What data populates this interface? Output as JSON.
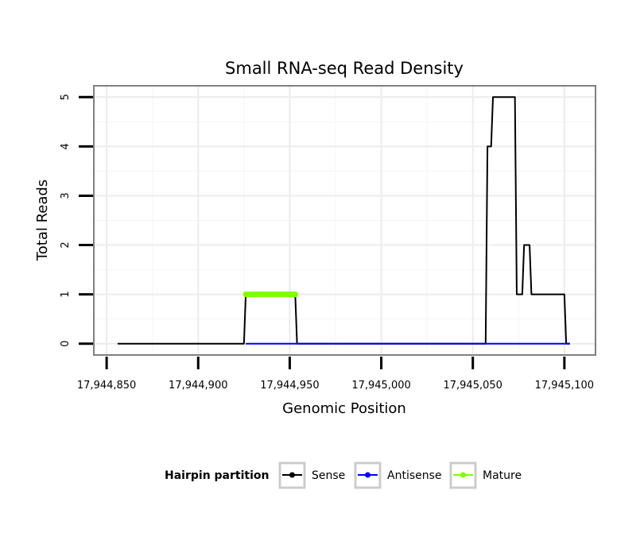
{
  "chart_data": {
    "type": "line",
    "title": "Small RNA-seq Read Density",
    "xlabel": "Genomic Position",
    "ylabel": "Total Reads",
    "xlim": [
      17944843,
      17945117
    ],
    "ylim": [
      -0.23,
      5.23
    ],
    "x_ticks": [
      17944850,
      17944900,
      17944950,
      17945000,
      17945050,
      17945100
    ],
    "x_tick_labels": [
      "17,944,850",
      "17,944,900",
      "17,944,950",
      "17,945,000",
      "17,945,050",
      "17,945,100"
    ],
    "y_ticks": [
      0,
      1,
      2,
      3,
      4,
      5
    ],
    "y_tick_labels": [
      "0",
      "1",
      "2",
      "3",
      "4",
      "5"
    ],
    "grid": true,
    "legend": {
      "title": "Hairpin partition",
      "position": "bottom",
      "entries": [
        {
          "label": "Sense",
          "color": "#000000"
        },
        {
          "label": "Antisense",
          "color": "#0000ff"
        },
        {
          "label": "Mature",
          "color": "#7fff00"
        }
      ]
    },
    "series": [
      {
        "name": "Sense",
        "color": "#000000",
        "points": [
          [
            17944856,
            0
          ],
          [
            17944925,
            0
          ],
          [
            17944926,
            1
          ],
          [
            17944953,
            1
          ],
          [
            17944954,
            0
          ],
          [
            17945057,
            0
          ],
          [
            17945058,
            4
          ],
          [
            17945060,
            4
          ],
          [
            17945061,
            5
          ],
          [
            17945073,
            5
          ],
          [
            17945074,
            1
          ],
          [
            17945077,
            1
          ],
          [
            17945078,
            2
          ],
          [
            17945081,
            2
          ],
          [
            17945082,
            1
          ],
          [
            17945100,
            1
          ],
          [
            17945101,
            0
          ],
          [
            17945103,
            0
          ]
        ]
      },
      {
        "name": "Antisense",
        "color": "#0000ff",
        "points": [
          [
            17944926,
            0
          ],
          [
            17944954,
            0
          ],
          [
            17945060,
            0
          ],
          [
            17945103,
            0
          ]
        ]
      },
      {
        "name": "Mature",
        "color": "#7fff00",
        "points": [
          [
            17944926,
            1
          ],
          [
            17944953,
            1
          ]
        ]
      }
    ]
  }
}
